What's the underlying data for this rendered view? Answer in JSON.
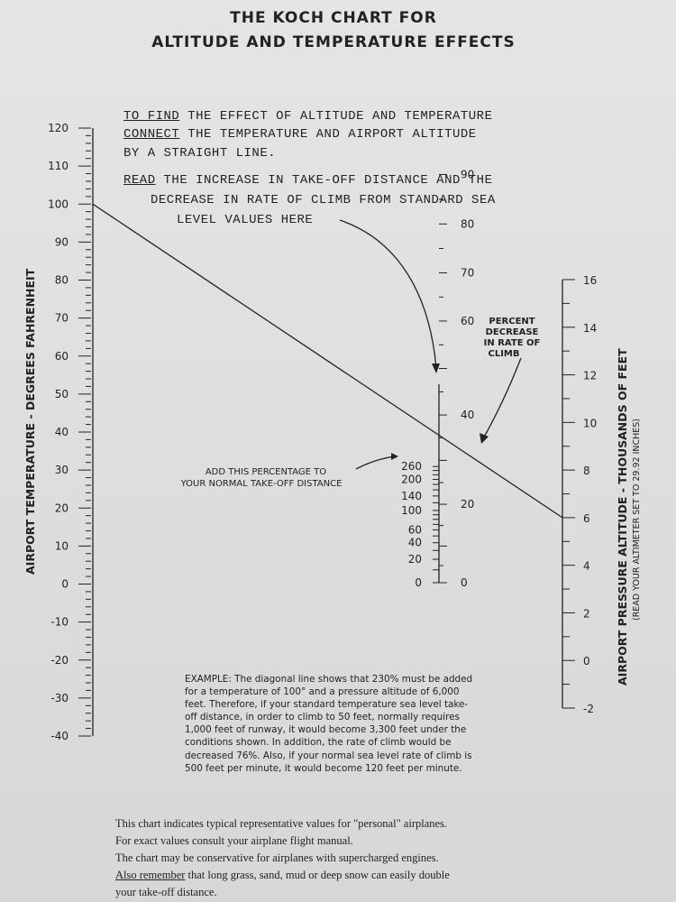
{
  "title_line1": "THE KOCH CHART FOR",
  "title_line2": "ALTITUDE AND TEMPERATURE EFFECTS",
  "instructions": {
    "find_keyword": "TO FIND",
    "find_rest": "THE EFFECT OF ALTITUDE AND TEMPERATURE",
    "connect_keyword": "CONNECT",
    "connect_rest": "THE TEMPERATURE AND AIRPORT ALTITUDE",
    "line3": "BY A STRAIGHT LINE.",
    "read_keyword": "READ",
    "read_rest": "THE INCREASE IN TAKE-OFF DISTANCE AND THE",
    "line5": "DECREASE IN RATE OF CLIMB FROM STANDARD SEA",
    "line6": "LEVEL VALUES HERE"
  },
  "scales": {
    "temperature": {
      "title": "AIRPORT TEMPERATURE - DEGREES FAHRENHEIT",
      "labels": [
        "120",
        "110",
        "100",
        "90",
        "80",
        "70",
        "60",
        "50",
        "40",
        "30",
        "20",
        "10",
        "0",
        "-10",
        "-20",
        "-30",
        "-40"
      ],
      "values": [
        120,
        110,
        100,
        90,
        80,
        70,
        60,
        50,
        40,
        30,
        20,
        10,
        0,
        -10,
        -20,
        -30,
        -40
      ]
    },
    "takeoff": {
      "labels": [
        "260",
        "200",
        "140",
        "100",
        "60",
        "40",
        "20",
        "0"
      ],
      "values": [
        260,
        200,
        140,
        100,
        60,
        40,
        20,
        0
      ]
    },
    "climb": {
      "title_lines": [
        "PERCENT",
        "DECREASE",
        "IN RATE OF",
        "CLIMB"
      ],
      "labels": [
        "90",
        "80",
        "70",
        "60",
        "40",
        "20",
        "0"
      ],
      "values": [
        90,
        80,
        70,
        60,
        40,
        20,
        0
      ]
    },
    "altitude": {
      "title": "AIRPORT PRESSURE ALTITUDE - THOUSANDS OF FEET",
      "subtitle": "(READ YOUR ALTIMETER SET TO 29.92 INCHES)",
      "labels": [
        "16",
        "14",
        "12",
        "10",
        "8",
        "6",
        "4",
        "2",
        "0",
        "-2"
      ],
      "values": [
        16,
        14,
        12,
        10,
        8,
        6,
        4,
        2,
        0,
        -2
      ]
    }
  },
  "example_line": {
    "temperature_f": 100,
    "altitude_thousand_ft": 6,
    "takeoff_increase_pct": 230,
    "climb_decrease_pct": 76
  },
  "add_label_lines": [
    "ADD THIS PERCENTAGE TO",
    "YOUR NORMAL TAKE-OFF DISTANCE"
  ],
  "example_text": "EXAMPLE: The diagonal line shows that 230% must be added for a temperature of 100° and a pressure altitude of 6,000 feet. Therefore, if your standard temperature sea level take-off distance, in order to climb to 50 feet, normally requires 1,000 feet of runway, it would become 3,300 feet under the conditions shown. In addition, the rate of climb would be decreased 76%. Also, if your normal sea level rate of climb is 500 feet per minute, it would become 120 feet per minute.",
  "notes": [
    "This chart indicates typical representative values for \"personal\" airplanes.",
    "For exact values consult your airplane flight manual.",
    "The chart may be conservative for airplanes with supercharged engines."
  ],
  "note4_keyword": "Also remember",
  "note4_rest": "that long grass, sand, mud or deep snow can easily double",
  "note5": "your take-off distance."
}
